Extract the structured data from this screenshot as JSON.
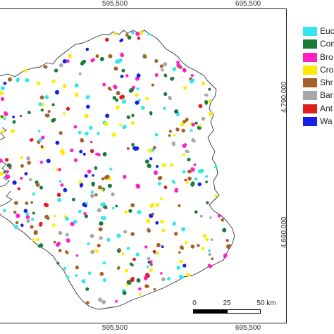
{
  "axes": {
    "x_ticks": [
      "595,500",
      "695,500"
    ],
    "y_ticks": [
      "4,790,000",
      "4,690,000"
    ]
  },
  "legend": {
    "items": [
      {
        "label": "Euc",
        "color": "#33e6f0",
        "icon": "legend-swatch"
      },
      {
        "label": "Com",
        "color": "#1a7a3a",
        "icon": "legend-swatch"
      },
      {
        "label": "Bro",
        "color": "#ff1fc4",
        "icon": "legend-swatch"
      },
      {
        "label": "Cro",
        "color": "#ffec00",
        "icon": "legend-swatch"
      },
      {
        "label": "Shr",
        "color": "#a5622a",
        "icon": "legend-swatch"
      },
      {
        "label": "Bar",
        "color": "#a8a8a8",
        "icon": "legend-swatch"
      },
      {
        "label": "Ant",
        "color": "#e01e1e",
        "icon": "legend-swatch"
      },
      {
        "label": "Wa",
        "color": "#1420e6",
        "icon": "legend-swatch"
      }
    ]
  },
  "scale_bar": {
    "labels": [
      "0",
      "25",
      "50 km"
    ]
  }
}
